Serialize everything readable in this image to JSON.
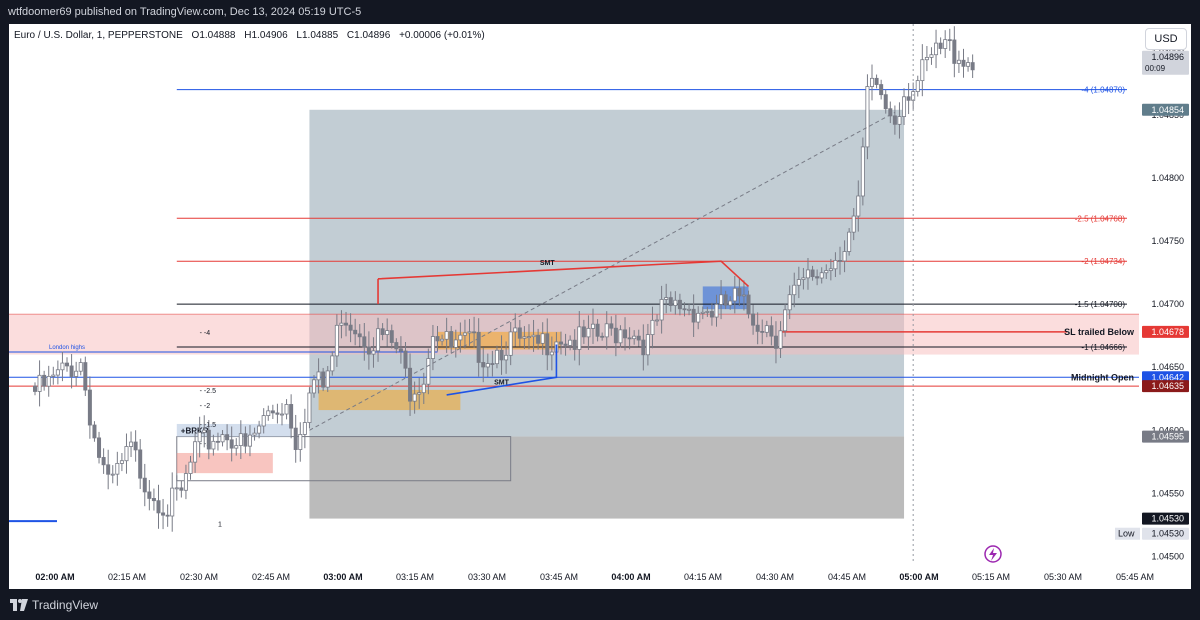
{
  "header": {
    "publisher": "wtfdoomer69 published on TradingView.com, Dec 13, 2024 05:19 UTC-5"
  },
  "symbol": {
    "name": "Euro / U.S. Dollar, 1, PEPPERSTONE",
    "open": "O1.04888",
    "high": "H1.04906",
    "low": "L1.04885",
    "close": "C1.04896",
    "change": "+0.00006 (+0.01%)"
  },
  "currency_button": "USD",
  "footer": {
    "brand": "TradingView"
  },
  "colors": {
    "bullish": "#787b86",
    "bearish": "#787b86",
    "red": "#e53935",
    "blue": "#1e53e5",
    "orange": "#f5a623",
    "gray_box": "#9aa8b3"
  },
  "chart_data": {
    "type": "candlestick",
    "title": "",
    "y_ticks": [
      "1.04900",
      "1.04850",
      "1.04800",
      "1.04750",
      "1.04700",
      "1.04650",
      "1.04600",
      "1.04550",
      "1.04500"
    ],
    "ylim": [
      1.04494,
      1.04922
    ],
    "x_ticks": [
      {
        "label": "02:00 AM",
        "bold": true
      },
      {
        "label": "02:15 AM"
      },
      {
        "label": "02:30 AM"
      },
      {
        "label": "02:45 AM"
      },
      {
        "label": "03:00 AM",
        "bold": true
      },
      {
        "label": "03:15 AM"
      },
      {
        "label": "03:30 AM"
      },
      {
        "label": "03:45 AM"
      },
      {
        "label": "04:00 AM",
        "bold": true
      },
      {
        "label": "04:15 AM"
      },
      {
        "label": "04:30 AM"
      },
      {
        "label": "04:45 AM"
      },
      {
        "label": "05:00 AM",
        "bold": true
      },
      {
        "label": "05:15 AM"
      },
      {
        "label": "05:30 AM"
      },
      {
        "label": "05:45 AM"
      }
    ],
    "time_range_minutes": [
      0,
      240
    ],
    "candles_close_path": [
      [
        0,
        1.04635
      ],
      [
        4,
        1.04642
      ],
      [
        8,
        1.04655
      ],
      [
        11,
        1.0466
      ],
      [
        14,
        1.046
      ],
      [
        17,
        1.0456
      ],
      [
        22,
        1.0459
      ],
      [
        26,
        1.0456
      ],
      [
        30,
        1.04545
      ],
      [
        33,
        1.04555
      ],
      [
        36,
        1.0459
      ],
      [
        40,
        1.046
      ],
      [
        43,
        1.04605
      ],
      [
        47,
        1.0459
      ],
      [
        52,
        1.0462
      ],
      [
        56,
        1.04628
      ],
      [
        58,
        1.046
      ],
      [
        60,
        1.04622
      ],
      [
        62,
        1.04645
      ],
      [
        64,
        1.0464
      ],
      [
        66,
        1.04664
      ],
      [
        68,
        1.047
      ],
      [
        71,
        1.0469
      ],
      [
        74,
        1.04678
      ],
      [
        77,
        1.0468
      ],
      [
        80,
        1.0467
      ],
      [
        83,
        1.0464
      ],
      [
        86,
        1.0465
      ],
      [
        88,
        1.04688
      ],
      [
        92,
        1.0467
      ],
      [
        96,
        1.04675
      ],
      [
        100,
        1.04665
      ],
      [
        105,
        1.04678
      ],
      [
        110,
        1.0467
      ],
      [
        115,
        1.04682
      ],
      [
        120,
        1.04676
      ],
      [
        125,
        1.0468
      ],
      [
        130,
        1.04688
      ],
      [
        135,
        1.04675
      ],
      [
        138,
        1.047
      ],
      [
        142,
        1.04705
      ],
      [
        146,
        1.04702
      ],
      [
        150,
        1.047
      ],
      [
        154,
        1.0471
      ],
      [
        158,
        1.04695
      ],
      [
        161,
        1.0469
      ],
      [
        163,
        1.04682
      ],
      [
        166,
        1.04708
      ],
      [
        170,
        1.04725
      ],
      [
        174,
        1.04735
      ],
      [
        178,
        1.04755
      ],
      [
        181,
        1.0478
      ],
      [
        183,
        1.0487
      ],
      [
        185,
        1.0488
      ],
      [
        187,
        1.04862
      ],
      [
        189,
        1.04855
      ],
      [
        191,
        1.04875
      ],
      [
        194,
        1.04882
      ],
      [
        197,
        1.049
      ],
      [
        200,
        1.0491
      ],
      [
        203,
        1.04905
      ],
      [
        206,
        1.04896
      ]
    ],
    "price_lines": [
      {
        "label": "-4 (1.04870)",
        "price": 1.0487,
        "color": "#1e53e5"
      },
      {
        "label": "-2.5 (1.04768)",
        "price": 1.04768,
        "color": "#e53935"
      },
      {
        "label": "-2 (1.04734)",
        "price": 1.04734,
        "color": "#e53935"
      },
      {
        "label": "-1.5 (1.04700)",
        "price": 1.047,
        "color": "#131722"
      },
      {
        "label": "-1 (1.04666)",
        "price": 1.04666,
        "color": "#131722"
      }
    ],
    "named_levels": [
      {
        "label": "SL trailed Below",
        "price": 1.04678,
        "color": "#e53935"
      },
      {
        "label": "Midnight Open",
        "price": 1.04642,
        "color": "#1e53e5"
      }
    ],
    "price_badges": [
      {
        "text": "1.04896",
        "sub": "00:09",
        "price": 1.04896,
        "bg": "#d1d4dc",
        "fg": "#131722"
      },
      {
        "text": "1.04854",
        "price": 1.04854,
        "bg": "#607d8b",
        "fg": "#ffffff"
      },
      {
        "text": "1.04678",
        "price": 1.04678,
        "bg": "#e53935",
        "fg": "#ffffff"
      },
      {
        "text": "1.04642",
        "price": 1.04642,
        "bg": "#1e53e5",
        "fg": "#ffffff"
      },
      {
        "text": "1.04635",
        "price": 1.04635,
        "bg": "#8b1a1a",
        "fg": "#ffffff"
      },
      {
        "text": "1.04595",
        "price": 1.04595,
        "bg": "#787b86",
        "fg": "#ffffff"
      },
      {
        "text": "1.04530",
        "price": 1.0453,
        "bg": "#131722",
        "fg": "#ffffff"
      },
      {
        "text": "1.04530",
        "price": 1.04518,
        "bg": "#e0e3eb",
        "fg": "#131722",
        "prefix": "Low"
      }
    ],
    "annotations": [
      {
        "text": "SMT",
        "kind": "red-line"
      },
      {
        "text": "SMT",
        "kind": "blue-line"
      },
      {
        "text": "London highs",
        "kind": "label"
      },
      {
        "text": "+BRKR",
        "kind": "label"
      },
      {
        "text": "- -4",
        "kind": "fib"
      },
      {
        "text": "- -2.5",
        "kind": "fib"
      },
      {
        "text": "- -2",
        "kind": "fib"
      },
      {
        "text": "- -1.5",
        "kind": "fib"
      },
      {
        "text": "- -1",
        "kind": "fib"
      },
      {
        "text": "1",
        "kind": "fib"
      }
    ]
  }
}
